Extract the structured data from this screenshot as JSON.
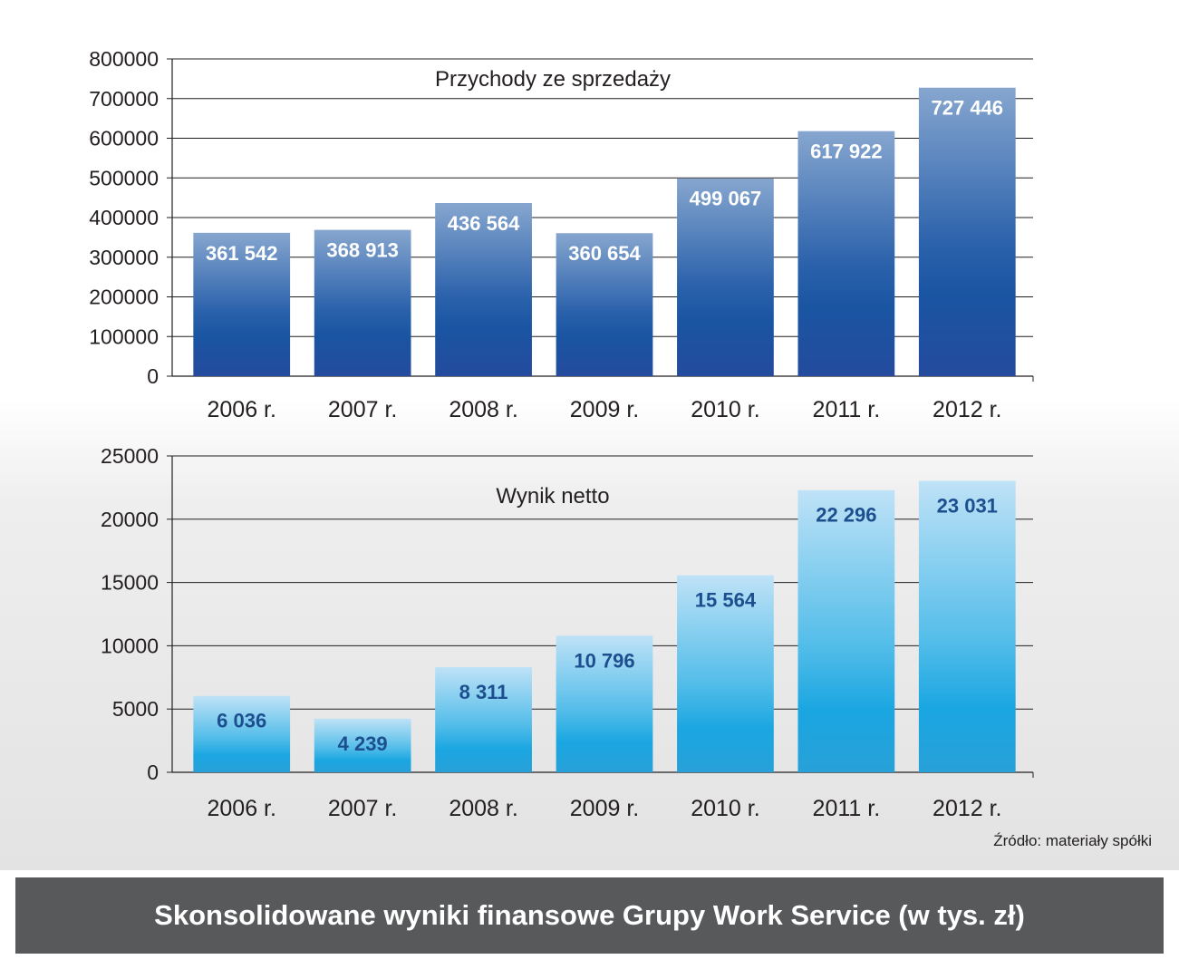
{
  "chart_data": [
    {
      "type": "bar",
      "title": "Przychody ze sprzedaży",
      "categories": [
        "2006 r.",
        "2007 r.",
        "2008 r.",
        "2009 r.",
        "2010 r.",
        "2011 r.",
        "2012 r."
      ],
      "values": [
        361542,
        368913,
        436564,
        360654,
        499067,
        617922,
        727446
      ],
      "value_labels": [
        "361 542",
        "368 913",
        "436 564",
        "360 654",
        "499 067",
        "617 922",
        "727 446"
      ],
      "yticks": [
        "0",
        "100000",
        "200000",
        "300000",
        "400000",
        "500000",
        "600000",
        "700000",
        "800000"
      ],
      "ylim": [
        0,
        800000
      ],
      "grid": true,
      "bar_color": "#1f5aa6",
      "label_color": "#ffffff"
    },
    {
      "type": "bar",
      "title": "Wynik netto",
      "categories": [
        "2006 r.",
        "2007 r.",
        "2008 r.",
        "2009 r.",
        "2010 r.",
        "2011 r.",
        "2012 r."
      ],
      "values": [
        6036,
        4239,
        8311,
        10796,
        15564,
        22296,
        23031
      ],
      "value_labels": [
        "6 036",
        "4 239",
        "8 311",
        "10 796",
        "15 564",
        "22 296",
        "23 031"
      ],
      "yticks": [
        "0",
        "5000",
        "10000",
        "15000",
        "20000",
        "25000"
      ],
      "ylim": [
        0,
        25000
      ],
      "grid": true,
      "bar_color": "#29a8e0",
      "label_color": "#1d4f8f"
    }
  ],
  "source": "Źródło: materiały spółki",
  "footer_title": "Skonsolidowane wyniki finansowe Grupy Work Service (w tys. zł)"
}
